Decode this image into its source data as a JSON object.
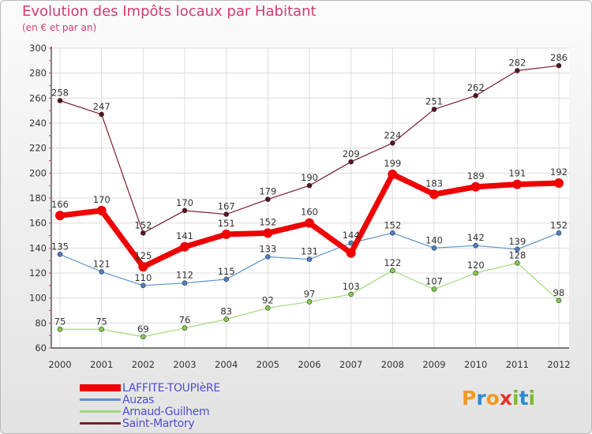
{
  "title": "Evolution des Impôts locaux par Habitant",
  "subtitle": "(en € et par an)",
  "logo": {
    "letters": [
      "P",
      "r",
      "o",
      "x",
      "i",
      "t",
      "i"
    ],
    "colors": [
      "#f39a1f",
      "#2a8ad0",
      "#f39a1f",
      "#e2352a",
      "#7cbd2f",
      "#2a8ad0",
      "#7cbd2f"
    ]
  },
  "chart_data": {
    "type": "line",
    "title": "Evolution des Impôts locaux par Habitant",
    "ylabel": "(en € et par an)",
    "xlabel": "",
    "categories": [
      "2000",
      "2001",
      "2002",
      "2003",
      "2004",
      "2005",
      "2006",
      "2007",
      "2008",
      "2009",
      "2010",
      "2011",
      "2012"
    ],
    "ylim": [
      60,
      300
    ],
    "yticks": [
      60,
      80,
      100,
      120,
      140,
      160,
      180,
      200,
      220,
      240,
      260,
      280,
      300
    ],
    "grid": true,
    "legend_position": "bottom-left",
    "series": [
      {
        "name": "Saint-Martory",
        "color": "#7b1f2e",
        "dot_color": "#5a1420",
        "width": 1.2,
        "dot_r": 3,
        "values": [
          258,
          247,
          152,
          170,
          167,
          179,
          190,
          209,
          224,
          251,
          262,
          282,
          286
        ],
        "labels": [
          "258",
          "247",
          "152",
          "170",
          "167",
          "179",
          "190",
          "209",
          "224",
          "251",
          "262",
          "282",
          "286"
        ]
      },
      {
        "name": "Auzas",
        "color": "#5b93c9",
        "dot_color": "#4a80c8",
        "width": 1.2,
        "dot_r": 3,
        "values": [
          135,
          121,
          110,
          112,
          115,
          133,
          131,
          144,
          152,
          140,
          142,
          139,
          152
        ],
        "labels": [
          "135",
          "121",
          "110",
          "112",
          "115",
          "133",
          "131",
          "144",
          "152",
          "140",
          "142",
          "139",
          "152"
        ]
      },
      {
        "name": "Arnaud-Guilhem",
        "color": "#a3d97a",
        "dot_color": "#82cc4a",
        "width": 1.2,
        "dot_r": 3,
        "values": [
          75,
          75,
          69,
          76,
          83,
          92,
          97,
          103,
          122,
          107,
          120,
          128,
          98
        ],
        "labels": [
          "75",
          "75",
          "69",
          "76",
          "83",
          "92",
          "97",
          "103",
          "122",
          "107",
          "120",
          "128",
          "98"
        ]
      },
      {
        "name": "LAFFITE-TOUPIèRE",
        "color": "#ee0000",
        "dot_color": "#ee0000",
        "width": 7,
        "dot_r": 6,
        "values": [
          166,
          170,
          125,
          141,
          151,
          152,
          160,
          136,
          199,
          183,
          189,
          191,
          192
        ],
        "labels": [
          "166",
          "170",
          "125",
          "141",
          "151",
          "152",
          "160",
          "",
          "199",
          "183",
          "189",
          "191",
          "192"
        ]
      }
    ]
  },
  "legend": [
    {
      "name": "LAFFITE-TOUPIèRE",
      "color": "#ee0000",
      "thick": true
    },
    {
      "name": "Auzas",
      "color": "#5b93c9",
      "thick": false
    },
    {
      "name": "Arnaud-Guilhem",
      "color": "#a3d97a",
      "thick": false
    },
    {
      "name": "Saint-Martory",
      "color": "#7b1f2e",
      "thick": false
    }
  ]
}
